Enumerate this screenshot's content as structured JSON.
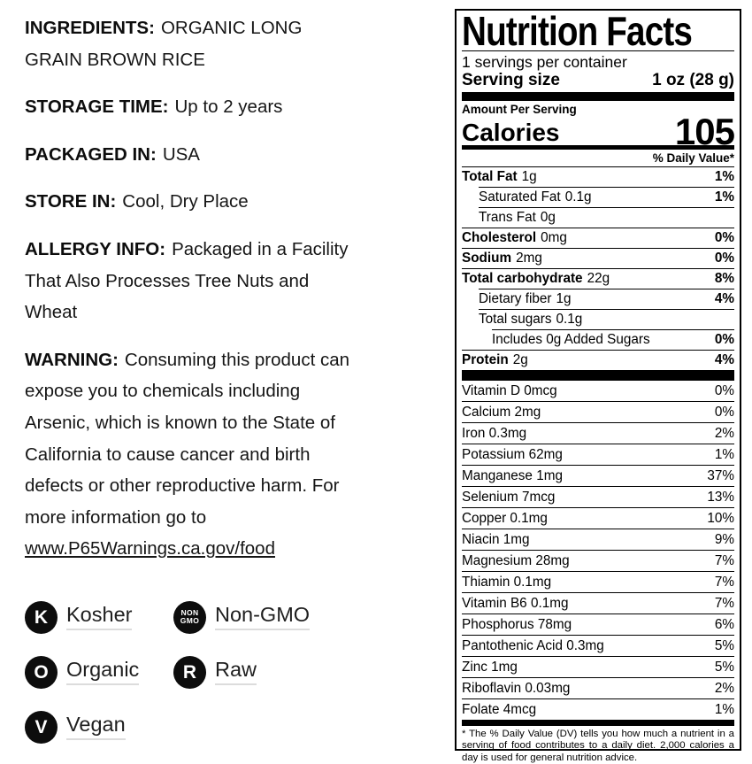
{
  "colors": {
    "text": "#161616",
    "badge_background": "#0d0d0d",
    "badge_underline": "#dcdcdc",
    "label_border": "#000000"
  },
  "left_panel": {
    "paragraphs": [
      {
        "label": "INGREDIENTS:",
        "text": "ORGANIC LONG\nGRAIN BROWN RICE"
      },
      {
        "label": "STORAGE TIME:",
        "text": "Up to 2 years"
      },
      {
        "label": "PACKAGED IN:",
        "text": "USA"
      },
      {
        "label": "STORE IN:",
        "text": "Cool, Dry Place"
      },
      {
        "label": "ALLERGY INFO:",
        "text": "Packaged in a Facility\nThat Also Processes Tree Nuts and\nWheat"
      },
      {
        "label": "WARNING:",
        "text": "Consuming this product can\nexpose you to chemicals including\nArsenic, which is known to the State of\nCalifornia to cause cancer and birth\ndefects or other reproductive harm. For\nmore information go to",
        "link": "www.P65Warnings.ca.gov/food"
      }
    ],
    "badges": [
      {
        "icon": "kosher-badge-icon",
        "icon_lines": [
          "K"
        ],
        "label": "Kosher"
      },
      {
        "icon": "non-gmo-badge-icon",
        "icon_lines": [
          "NON",
          "GMO"
        ],
        "label": "Non-GMO"
      },
      {
        "icon": "organic-badge-icon",
        "icon_lines": [
          "O"
        ],
        "label": "Organic"
      },
      {
        "icon": "raw-badge-icon",
        "icon_lines": [
          "R"
        ],
        "label": "Raw"
      },
      {
        "icon": "vegan-badge-icon",
        "icon_lines": [
          "V"
        ],
        "label": "Vegan"
      }
    ]
  },
  "nutrition": {
    "title": "Nutrition Facts",
    "servings_per_container": "1 servings per container",
    "serving_size_label": "Serving size",
    "serving_size_value": "1 oz (28 g)",
    "amount_per_serving": "Amount Per Serving",
    "calories_label": "Calories",
    "calories_value": "105",
    "daily_value_header": "% Daily Value*",
    "main_rows": [
      {
        "name": "Total Fat",
        "amount": "1g",
        "dv": "1%",
        "bold": true,
        "indent": 0
      },
      {
        "name": "Saturated Fat",
        "amount": "0.1g",
        "dv": "1%",
        "bold": false,
        "indent": 1
      },
      {
        "name": "Trans Fat",
        "amount": "0g",
        "dv": "",
        "bold": false,
        "indent": 1
      },
      {
        "name": "Cholesterol",
        "amount": "0mg",
        "dv": "0%",
        "bold": true,
        "indent": 0
      },
      {
        "name": "Sodium",
        "amount": "2mg",
        "dv": "0%",
        "bold": true,
        "indent": 0
      },
      {
        "name": "Total carbohydrate",
        "amount": "22g",
        "dv": "8%",
        "bold": true,
        "indent": 0
      },
      {
        "name": "Dietary fiber",
        "amount": "1g",
        "dv": "4%",
        "bold": false,
        "indent": 1
      },
      {
        "name": "Total sugars",
        "amount": "0.1g",
        "dv": "",
        "bold": false,
        "indent": 1
      },
      {
        "name": "Includes 0g Added Sugars",
        "amount": "",
        "dv": "0%",
        "bold": false,
        "indent": 2
      },
      {
        "name": "Protein",
        "amount": "2g",
        "dv": "4%",
        "bold": true,
        "indent": 0
      }
    ],
    "vitamin_rows": [
      {
        "name": "Vitamin D 0mcg",
        "dv": "0%"
      },
      {
        "name": "Calcium 2mg",
        "dv": "0%"
      },
      {
        "name": "Iron 0.3mg",
        "dv": "2%"
      },
      {
        "name": "Potassium 62mg",
        "dv": "1%"
      },
      {
        "name": "Manganese 1mg",
        "dv": "37%"
      },
      {
        "name": "Selenium 7mcg",
        "dv": "13%"
      },
      {
        "name": "Copper 0.1mg",
        "dv": "10%"
      },
      {
        "name": "Niacin 1mg",
        "dv": "9%"
      },
      {
        "name": "Magnesium 28mg",
        "dv": "7%"
      },
      {
        "name": "Thiamin 0.1mg",
        "dv": "7%"
      },
      {
        "name": "Vitamin B6 0.1mg",
        "dv": "7%"
      },
      {
        "name": "Phosphorus 78mg",
        "dv": "6%"
      },
      {
        "name": "Pantothenic Acid 0.3mg",
        "dv": "5%"
      },
      {
        "name": "Zinc 1mg",
        "dv": "5%"
      },
      {
        "name": "Riboflavin 0.03mg",
        "dv": "2%"
      },
      {
        "name": "Folate 4mcg",
        "dv": "1%"
      }
    ],
    "footnote": "* The % Daily Value (DV) tells you how much a nutrient in a serving of food contributes to a daily diet. 2,000 calories a day is used for general nutrition advice."
  }
}
